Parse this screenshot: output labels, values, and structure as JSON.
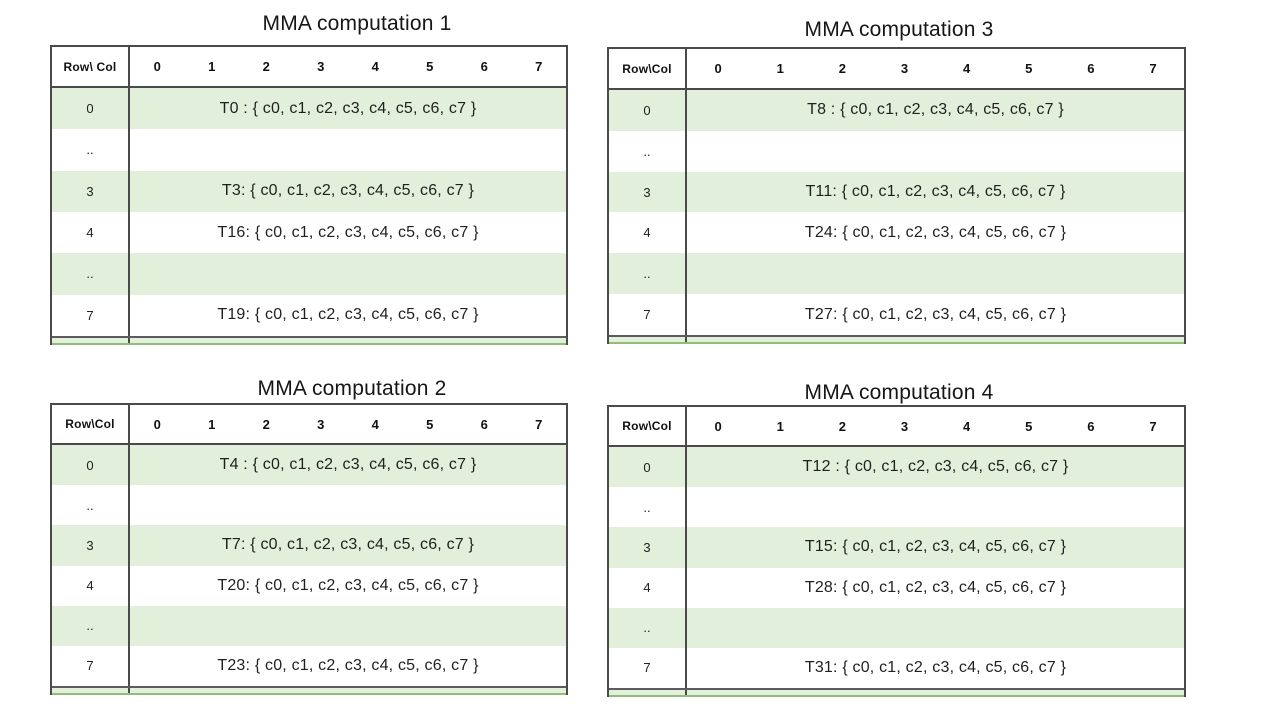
{
  "colors": {
    "band_green": "#e2efda",
    "border_dark": "#4a4a4a",
    "sliver_edge_green": "#94ba77",
    "background": "#ffffff",
    "text": "#1f1f1f"
  },
  "tables": [
    {
      "title": "MMA computation 1",
      "corner": "Row\\ Col",
      "columns": [
        "0",
        "1",
        "2",
        "3",
        "4",
        "5",
        "6",
        "7"
      ],
      "rows": [
        {
          "label": "0",
          "value": "T0 : { c0, c1, c2, c3, c4, c5, c6, c7 }",
          "shaded": true
        },
        {
          "label": "..",
          "value": "",
          "shaded": false
        },
        {
          "label": "3",
          "value": "T3: { c0, c1, c2, c3, c4, c5, c6, c7 }",
          "shaded": true
        },
        {
          "label": "4",
          "value": "T16: { c0, c1, c2, c3, c4, c5, c6, c7 }",
          "shaded": false
        },
        {
          "label": "..",
          "value": "",
          "shaded": true
        },
        {
          "label": "7",
          "value": "T19: { c0, c1, c2, c3, c4, c5, c6, c7 }",
          "shaded": false
        }
      ]
    },
    {
      "title": "MMA computation 2",
      "corner": "Row\\Col",
      "columns": [
        "0",
        "1",
        "2",
        "3",
        "4",
        "5",
        "6",
        "7"
      ],
      "rows": [
        {
          "label": "0",
          "value": "T4 : { c0, c1, c2, c3, c4, c5, c6, c7 }",
          "shaded": true
        },
        {
          "label": "..",
          "value": "",
          "shaded": false
        },
        {
          "label": "3",
          "value": "T7: { c0, c1, c2, c3, c4, c5, c6, c7 }",
          "shaded": true
        },
        {
          "label": "4",
          "value": "T20: { c0, c1, c2, c3, c4, c5, c6, c7 }",
          "shaded": false
        },
        {
          "label": "..",
          "value": "",
          "shaded": true
        },
        {
          "label": "7",
          "value": "T23: { c0, c1, c2, c3, c4, c5, c6, c7 }",
          "shaded": false
        }
      ]
    },
    {
      "title": "MMA computation 3",
      "corner": "Row\\Col",
      "columns": [
        "0",
        "1",
        "2",
        "3",
        "4",
        "5",
        "6",
        "7"
      ],
      "rows": [
        {
          "label": "0",
          "value": "T8 : { c0, c1, c2, c3, c4, c5, c6, c7 }",
          "shaded": true
        },
        {
          "label": "..",
          "value": "",
          "shaded": false
        },
        {
          "label": "3",
          "value": "T11: { c0, c1, c2, c3, c4, c5, c6, c7 }",
          "shaded": true
        },
        {
          "label": "4",
          "value": "T24: { c0, c1, c2, c3, c4, c5, c6, c7 }",
          "shaded": false
        },
        {
          "label": "..",
          "value": "",
          "shaded": true
        },
        {
          "label": "7",
          "value": "T27: { c0, c1, c2, c3, c4, c5, c6, c7 }",
          "shaded": false
        }
      ]
    },
    {
      "title": "MMA computation 4",
      "corner": "Row\\Col",
      "columns": [
        "0",
        "1",
        "2",
        "3",
        "4",
        "5",
        "6",
        "7"
      ],
      "rows": [
        {
          "label": "0",
          "value": "T12 : { c0, c1, c2, c3, c4, c5, c6, c7 }",
          "shaded": true
        },
        {
          "label": "..",
          "value": "",
          "shaded": false
        },
        {
          "label": "3",
          "value": "T15: { c0, c1, c2, c3, c4, c5, c6, c7 }",
          "shaded": true
        },
        {
          "label": "4",
          "value": "T28: { c0, c1, c2, c3, c4, c5, c6, c7 }",
          "shaded": false
        },
        {
          "label": "..",
          "value": "",
          "shaded": true
        },
        {
          "label": "7",
          "value": "T31: { c0, c1, c2, c3, c4, c5, c6, c7 }",
          "shaded": false
        }
      ]
    }
  ]
}
